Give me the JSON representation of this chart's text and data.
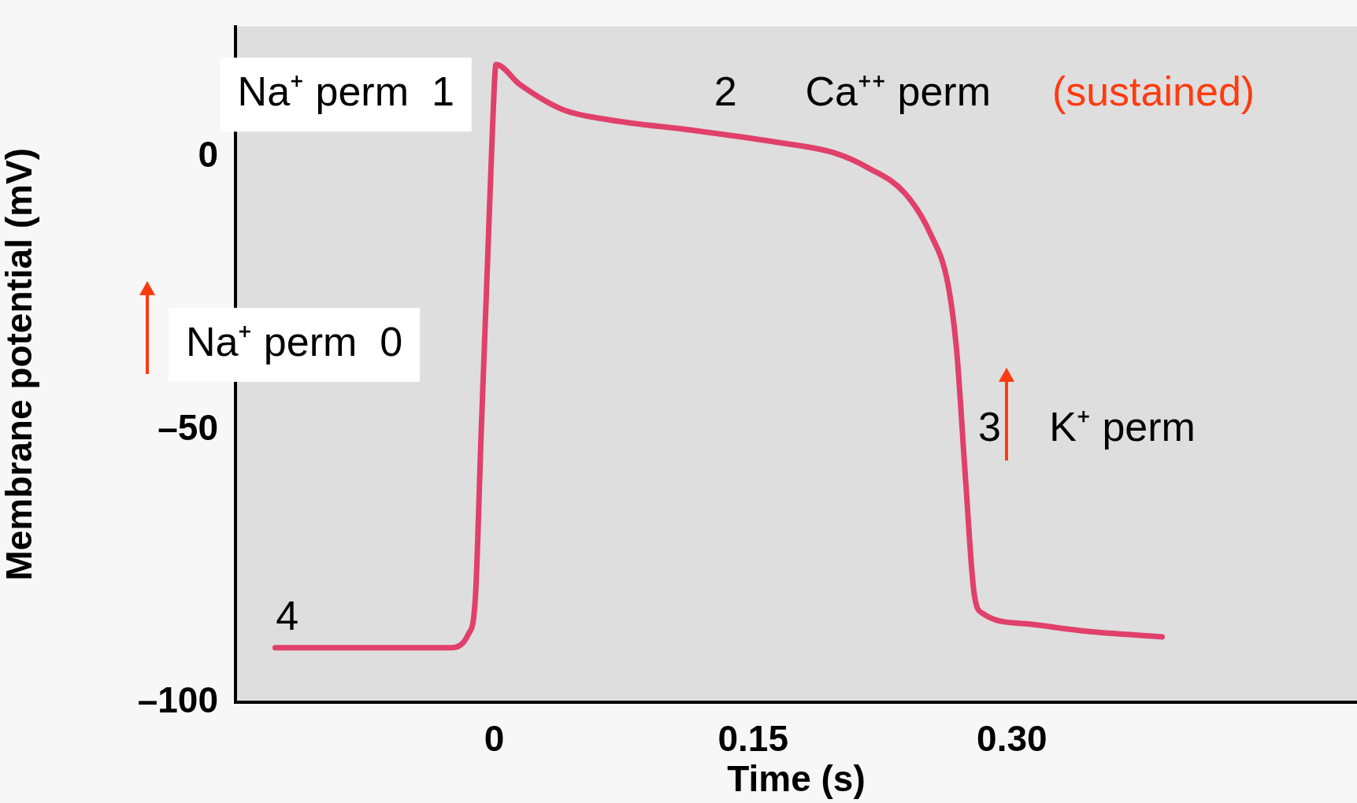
{
  "chart_data": {
    "type": "line",
    "xlabel": "Time (s)",
    "ylabel": "Membrane potential (mV)",
    "x": [
      -0.127,
      -0.025,
      -0.015,
      -0.011,
      -0.0076,
      -0.004,
      -0.001,
      0.001,
      0.015,
      0.04,
      0.066,
      0.116,
      0.167,
      0.197,
      0.217,
      0.238,
      0.253,
      0.263,
      0.268,
      0.273,
      0.278,
      0.283,
      0.308,
      0.344,
      0.387
    ],
    "series": [
      {
        "color": "#e0406a",
        "values": [
          -90,
          -90,
          -87.5,
          -81,
          -50.6,
          -20,
          5.6,
          17,
          13.3,
          8.7,
          6.9,
          4.9,
          2.6,
          0.8,
          -2,
          -6.6,
          -14.2,
          -23.4,
          -35.6,
          -58.5,
          -79.8,
          -83.7,
          -85.6,
          -87,
          -88
        ]
      }
    ],
    "xlim": [
      -0.15,
      0.5
    ],
    "ylim": [
      -100,
      24
    ],
    "xticks": [
      0,
      0.15,
      {
        "value": 0.3,
        "label": "0.30"
      }
    ],
    "yticks": [
      {
        "value": -100,
        "label": "–100"
      },
      {
        "value": -50,
        "label": "–50"
      },
      0
    ],
    "grid": false,
    "legend": false,
    "marker": "none",
    "line_style": "solid",
    "annotations": [
      "Na⁺ perm  1",
      "2",
      "Ca⁺⁺ perm",
      "(sustained)",
      "Na⁺ perm  0",
      "3",
      "K⁺ perm",
      "4"
    ]
  }
}
